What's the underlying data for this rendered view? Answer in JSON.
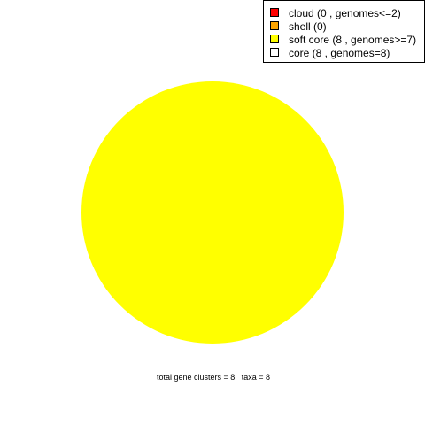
{
  "chart_data": {
    "type": "pie",
    "categories": [
      "cloud",
      "shell",
      "soft core",
      "core"
    ],
    "values": [
      0,
      0,
      8,
      8
    ],
    "slices": [
      {
        "category": "cloud",
        "value": 0,
        "color": "#ff0000"
      },
      {
        "category": "shell",
        "value": 0,
        "color": "#ffa500"
      },
      {
        "category": "soft core",
        "value": 8,
        "color": "#ffff00"
      },
      {
        "category": "core",
        "value": 8,
        "color": "#ffffff"
      }
    ],
    "drawn_slice": "soft core",
    "legend": {
      "placement": "top-right",
      "entries": [
        {
          "label": "cloud  (0 , genomes<=2)",
          "color": "#ff0000"
        },
        {
          "label": "shell  (0)",
          "color": "#ffa500"
        },
        {
          "label": "soft core  (8 , genomes>=7)",
          "color": "#ffff00"
        },
        {
          "label": "core  (8 , genomes=8)",
          "color": "#ffffff"
        }
      ]
    },
    "footer": "total gene clusters = 8   taxa = 8"
  }
}
